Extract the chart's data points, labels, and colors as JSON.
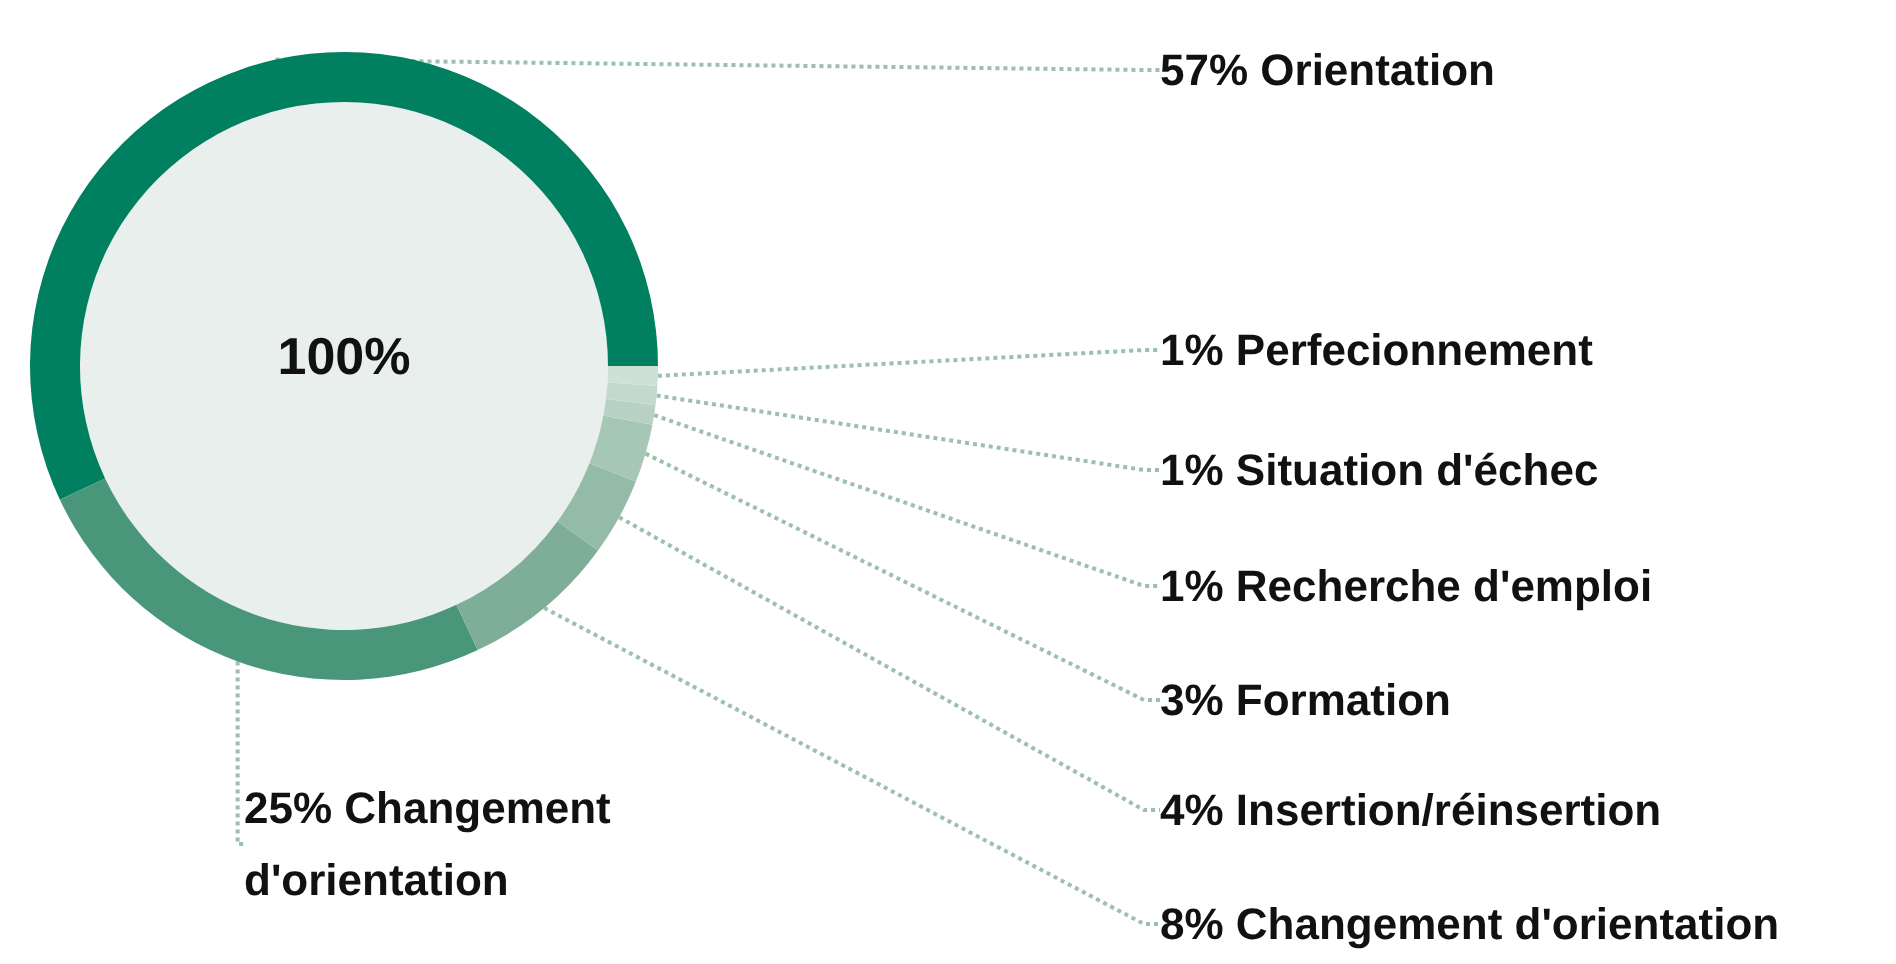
{
  "chart_data": {
    "type": "donut",
    "categories": [
      "Orientation",
      "Changement d'orientation",
      "Changement d'orientation",
      "Insertion/réinsertion",
      "Formation",
      "Recherche d'emploi",
      "Situation d'échec",
      "Perfecionnement"
    ],
    "values": [
      57,
      25,
      8,
      4,
      3,
      1,
      1,
      1
    ],
    "value_labels": [
      "57%",
      "25%",
      "8%",
      "4%",
      "3%",
      "1%",
      "1%",
      "1%"
    ],
    "colors": [
      "#008060",
      "#4a967a",
      "#7fae98",
      "#94bba8",
      "#a6c7b6",
      "#b7d2c4",
      "#c3d9cd",
      "#cfe0d6"
    ],
    "annotations": [
      "100%"
    ],
    "legend": false
  }
}
